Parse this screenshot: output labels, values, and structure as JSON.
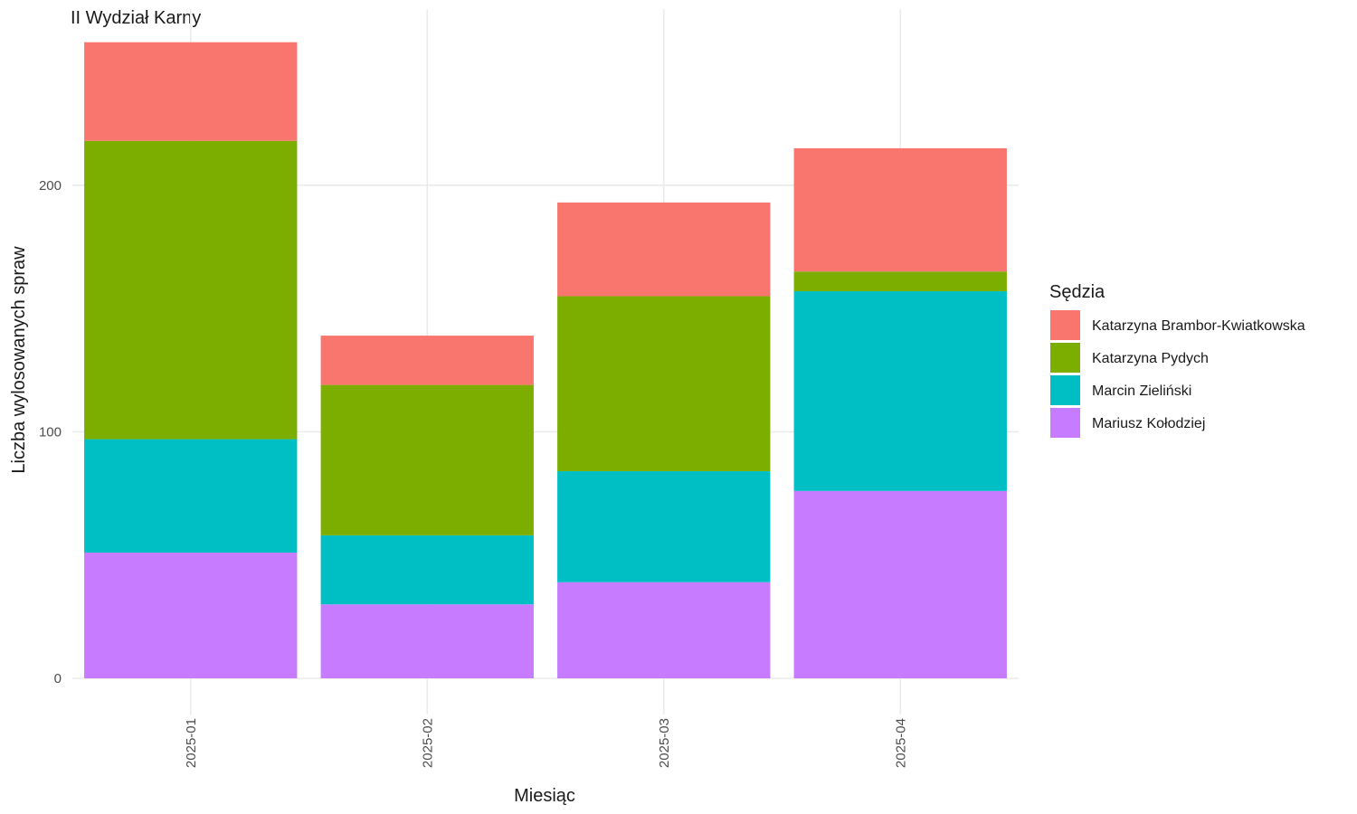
{
  "chart_data": {
    "type": "bar",
    "stacked": true,
    "title": "II Wydział Karny",
    "xlabel": "Miesiąc",
    "ylabel": "Liczba wylosowanych spraw",
    "categories": [
      "2025-01",
      "2025-02",
      "2025-03",
      "2025-04"
    ],
    "ylim": [
      0,
      258
    ],
    "yticks": [
      0,
      100,
      200
    ],
    "grid": true,
    "legend": {
      "title": "Sędzia",
      "position": "right"
    },
    "series": [
      {
        "name": "Katarzyna Brambor-Kwiatkowska",
        "color": "#F8766D",
        "values": [
          40,
          20,
          38,
          50
        ]
      },
      {
        "name": "Katarzyna Pydych",
        "color": "#7CAE00",
        "values": [
          121,
          61,
          71,
          8
        ]
      },
      {
        "name": "Marcin Zieliński",
        "color": "#00BFC4",
        "values": [
          46,
          28,
          45,
          81
        ]
      },
      {
        "name": "Mariusz Kołodziej",
        "color": "#C77CFF",
        "values": [
          51,
          30,
          39,
          76
        ]
      }
    ]
  }
}
